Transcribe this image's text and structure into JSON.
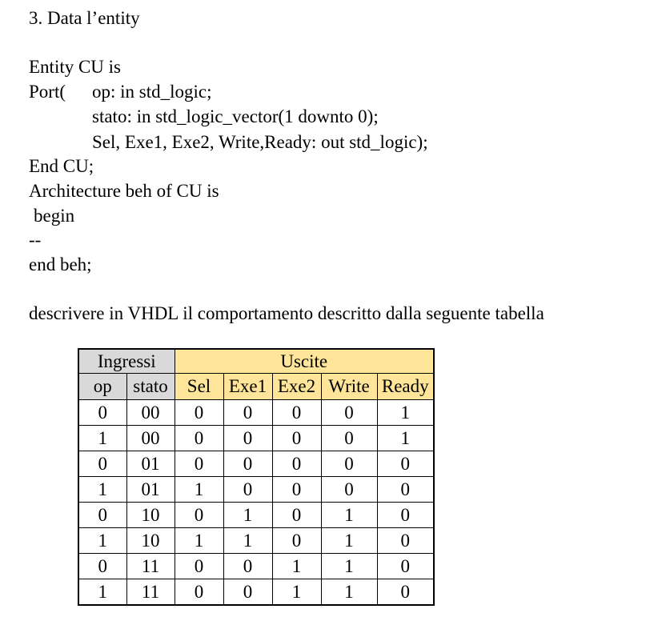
{
  "heading": "3. Data l’entity",
  "code": {
    "entity_line": "Entity CU is",
    "port_keyword": "Port(",
    "op_line": "op: in std_logic;",
    "stato_line": "stato: in std_logic_vector(1 downto 0);",
    "outputs_line": "Sel, Exe1, Exe2, Write,Ready: out std_logic);",
    "end_cu_line": "End CU;",
    "architecture_line": "Architecture beh of CU is",
    "begin_line": "begin",
    "placeholder_line": "--",
    "end_beh_line": "end beh;"
  },
  "task": "descrivere in VHDL il comportamento descritto dalla seguente tabella",
  "table": {
    "input_group_label": "Ingressi",
    "output_group_label": "Uscite",
    "input_columns": [
      "op",
      "stato"
    ],
    "output_columns": [
      "Sel",
      "Exe1",
      "Exe2",
      "Write",
      "Ready"
    ],
    "header_colors": {
      "inputs": "#d9d9d9",
      "outputs": "#ffe599"
    },
    "rows": [
      [
        "0",
        "00",
        "0",
        "0",
        "0",
        "0",
        "1"
      ],
      [
        "1",
        "00",
        "0",
        "0",
        "0",
        "0",
        "1"
      ],
      [
        "0",
        "01",
        "0",
        "0",
        "0",
        "0",
        "0"
      ],
      [
        "1",
        "01",
        "1",
        "0",
        "0",
        "0",
        "0"
      ],
      [
        "0",
        "10",
        "0",
        "1",
        "0",
        "1",
        "0"
      ],
      [
        "1",
        "10",
        "1",
        "1",
        "0",
        "1",
        "0"
      ],
      [
        "0",
        "11",
        "0",
        "0",
        "1",
        "1",
        "0"
      ],
      [
        "1",
        "11",
        "0",
        "0",
        "1",
        "1",
        "0"
      ]
    ]
  }
}
